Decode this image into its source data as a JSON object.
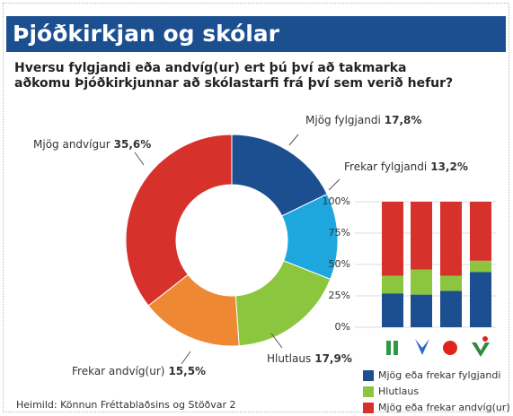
{
  "title": "Þjóðkirkjan og skólar",
  "subtitle": [
    "Hversu fylgjandi eða andvíg(ur) ert þú því að takmarka",
    "aðkomu Þjóðkirkjunnar að skólastarfi frá því sem verið hefur?"
  ],
  "source": "Heimild: Könnun Fréttablaðsins og Stöðvar 2",
  "chart_data": [
    {
      "type": "pie",
      "categories": [
        "Mjög fylgjandi",
        "Frekar fylgjandi",
        "Hlutlaus",
        "Frekar andvíg(ur)",
        "Mjög andvígur"
      ],
      "values": [
        17.8,
        13.2,
        17.9,
        15.5,
        35.6
      ],
      "value_labels": [
        "17,8%",
        "13,2%",
        "17,9%",
        "15,5%",
        "35,6%"
      ],
      "colors": [
        "#1b4f8f",
        "#1ea6df",
        "#8cc63f",
        "#ef8832",
        "#d7312c"
      ]
    },
    {
      "type": "bar",
      "stacked": true,
      "categories": [
        null,
        null,
        null,
        null
      ],
      "series": [
        {
          "name": "Mjög eða frekar fylgjandi",
          "color": "#1b4f8f",
          "values": [
            27,
            26,
            29,
            44
          ]
        },
        {
          "name": "Hlutlaus",
          "color": "#8cc63f",
          "values": [
            14,
            20,
            12,
            9
          ]
        },
        {
          "name": "Mjög eða frekar andvíg(ur)",
          "color": "#d7312c",
          "values": [
            59,
            54,
            59,
            47
          ]
        }
      ],
      "ylim": [
        0,
        100
      ],
      "yticks": [
        {
          "value": 0,
          "label": "0%"
        },
        {
          "value": 25,
          "label": "25%"
        },
        {
          "value": 50,
          "label": "50%"
        },
        {
          "value": 75,
          "label": "75%"
        },
        {
          "value": 100,
          "label": "100%"
        }
      ]
    }
  ]
}
